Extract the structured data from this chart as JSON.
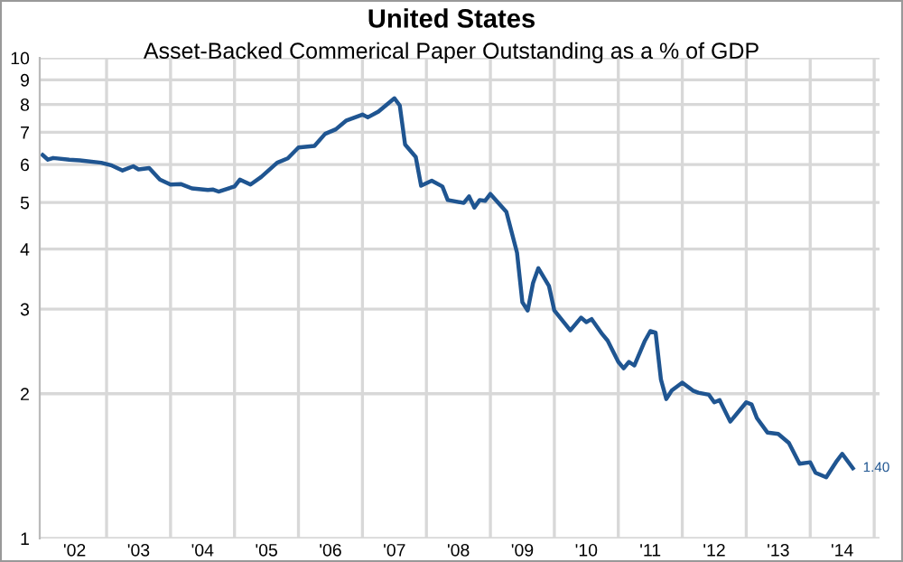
{
  "chart_data": {
    "type": "line",
    "title": "United States",
    "subtitle": "Asset-Backed Commerical Paper Outstanding as a % of GDP",
    "x": [
      "2002-01",
      "2002-02",
      "2002-03",
      "2002-06",
      "2002-08",
      "2002-12",
      "2003-02",
      "2003-04",
      "2003-06",
      "2003-07",
      "2003-09",
      "2003-11",
      "2004-01",
      "2004-03",
      "2004-05",
      "2004-08",
      "2004-09",
      "2004-10",
      "2005-01",
      "2005-02",
      "2005-04",
      "2005-06",
      "2005-09",
      "2005-11",
      "2006-01",
      "2006-04",
      "2006-06",
      "2006-08",
      "2006-10",
      "2007-01",
      "2007-02",
      "2007-04",
      "2007-07",
      "2007-08",
      "2007-09",
      "2007-11",
      "2007-12",
      "2008-02",
      "2008-04",
      "2008-05",
      "2008-08",
      "2008-09",
      "2008-10",
      "2008-11",
      "2008-12",
      "2009-01",
      "2009-04",
      "2009-06",
      "2009-07",
      "2009-08",
      "2009-09",
      "2009-10",
      "2009-12",
      "2010-01",
      "2010-04",
      "2010-06",
      "2010-07",
      "2010-08",
      "2010-10",
      "2010-11",
      "2011-01",
      "2011-02",
      "2011-03",
      "2011-04",
      "2011-06",
      "2011-07",
      "2011-08",
      "2011-09",
      "2011-10",
      "2011-11",
      "2012-01",
      "2012-03",
      "2012-04",
      "2012-06",
      "2012-07",
      "2012-08",
      "2012-10",
      "2013-01",
      "2013-02",
      "2013-03",
      "2013-05",
      "2013-07",
      "2013-09",
      "2013-11",
      "2014-01",
      "2014-02",
      "2014-04",
      "2014-06",
      "2014-07",
      "2014-09"
    ],
    "series": [
      {
        "color": "#1f5591",
        "values": [
          6.28,
          6.14,
          6.19,
          6.14,
          6.12,
          6.05,
          5.97,
          5.83,
          5.95,
          5.86,
          5.9,
          5.58,
          5.45,
          5.46,
          5.35,
          5.31,
          5.32,
          5.27,
          5.4,
          5.58,
          5.45,
          5.65,
          6.05,
          6.18,
          6.51,
          6.56,
          6.95,
          7.1,
          7.41,
          7.62,
          7.52,
          7.73,
          8.24,
          7.96,
          6.6,
          6.22,
          5.42,
          5.55,
          5.4,
          5.06,
          4.99,
          5.15,
          4.88,
          5.06,
          5.04,
          5.21,
          4.78,
          3.93,
          3.1,
          2.98,
          3.4,
          3.65,
          3.35,
          2.98,
          2.71,
          2.88,
          2.82,
          2.86,
          2.66,
          2.58,
          2.33,
          2.26,
          2.33,
          2.29,
          2.58,
          2.7,
          2.68,
          2.14,
          1.95,
          2.03,
          2.11,
          2.03,
          2.01,
          1.99,
          1.92,
          1.94,
          1.75,
          1.92,
          1.9,
          1.78,
          1.66,
          1.65,
          1.58,
          1.43,
          1.44,
          1.37,
          1.34,
          1.45,
          1.5,
          1.4
        ],
        "value_labels": [
          null,
          null,
          null,
          null,
          null,
          null,
          null,
          null,
          null,
          null,
          null,
          null,
          null,
          null,
          null,
          null,
          null,
          null,
          null,
          null,
          null,
          null,
          null,
          null,
          null,
          null,
          null,
          null,
          null,
          null,
          null,
          null,
          null,
          null,
          null,
          null,
          null,
          null,
          null,
          null,
          null,
          null,
          null,
          null,
          null,
          null,
          null,
          null,
          null,
          null,
          null,
          null,
          null,
          null,
          null,
          null,
          null,
          null,
          null,
          null,
          null,
          null,
          null,
          null,
          null,
          null,
          null,
          null,
          null,
          null,
          null,
          null,
          null,
          null,
          null,
          null,
          null,
          null,
          null,
          null,
          null,
          null,
          null,
          null,
          null,
          null,
          null,
          null,
          null,
          "1.40"
        ]
      }
    ],
    "log": "y",
    "ylim": [
      1,
      10
    ],
    "yticks": [
      1,
      2,
      3,
      4,
      5,
      6,
      7,
      8,
      9,
      10
    ],
    "xlim": [
      "2001-12-15",
      "2015-02"
    ],
    "xticks": [
      {
        "value": "2002-07",
        "label": "'02"
      },
      {
        "value": "2003-07",
        "label": "'03"
      },
      {
        "value": "2004-07",
        "label": "'04"
      },
      {
        "value": "2005-07",
        "label": "'05"
      },
      {
        "value": "2006-07",
        "label": "'06"
      },
      {
        "value": "2007-07",
        "label": "'07"
      },
      {
        "value": "2008-07",
        "label": "'08"
      },
      {
        "value": "2009-07",
        "label": "'09"
      },
      {
        "value": "2010-07",
        "label": "'10"
      },
      {
        "value": "2011-07",
        "label": "'11"
      },
      {
        "value": "2012-07",
        "label": "'12"
      },
      {
        "value": "2013-07",
        "label": "'13"
      },
      {
        "value": "2014-07",
        "label": "'14"
      },
      {
        "value": "2003",
        "label": null
      },
      {
        "value": "2004",
        "label": null
      },
      {
        "value": "2005",
        "label": null
      },
      {
        "value": "2006",
        "label": null
      },
      {
        "value": "2007",
        "label": null
      },
      {
        "value": "2008",
        "label": null
      },
      {
        "value": "2009",
        "label": null
      },
      {
        "value": "2010",
        "label": null
      },
      {
        "value": "2011",
        "label": null
      },
      {
        "value": "2012",
        "label": null
      },
      {
        "value": "2013",
        "label": null
      },
      {
        "value": "2014",
        "label": null
      },
      {
        "value": "2015",
        "label": null
      }
    ],
    "grid": true,
    "marker": "none",
    "line_style": "solid",
    "legend": false
  }
}
